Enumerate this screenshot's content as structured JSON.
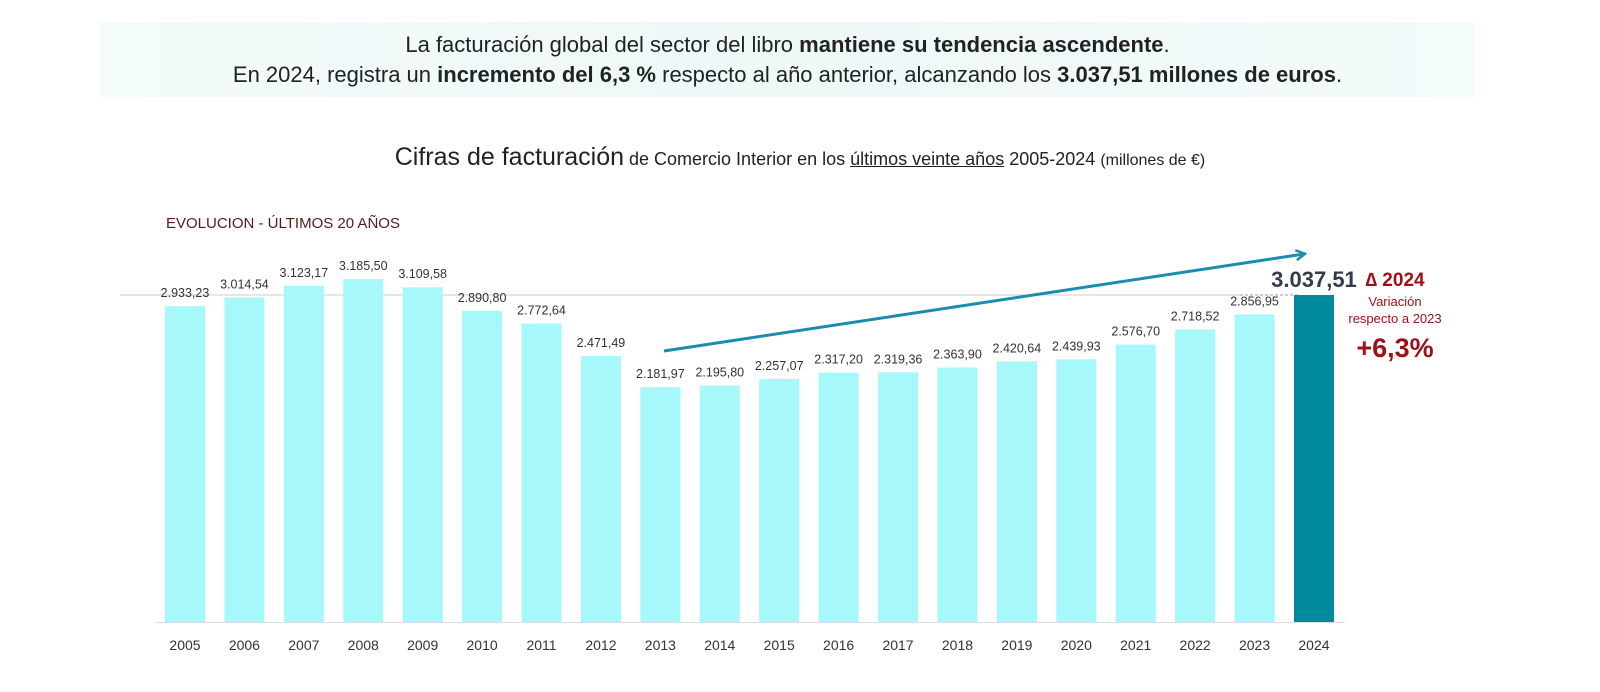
{
  "banner": {
    "line1_a": "La facturación global del sector del libro ",
    "line1_b": "mantiene su tendencia ascendente",
    "line1_c": ".",
    "line2_a": "En 2024",
    "line2_b": ", registra un ",
    "line2_c": "incremento del 6,3 %",
    "line2_d": " respecto al año anterior, alcanzando los ",
    "line2_e": "3.037,51 millones de euros",
    "line2_f": "."
  },
  "title": {
    "a": "Cifras de facturación",
    "b": " de Comercio Interior en los ",
    "c": "últimos veinte años",
    "d": " 2005-2024 ",
    "e": "(millones de €)"
  },
  "subtitle": "EVOLUCION - ÚLTIMOS 20 AÑOS",
  "annotation": {
    "delta": "∆ 2024",
    "label1": "Variación",
    "label2": "respecto a 2023",
    "value": "+6,3%"
  },
  "colors": {
    "bar": "#a6f8fb",
    "highlight": "#008a9c",
    "arrow": "#1b8bb0",
    "annotation": "#a01018"
  },
  "chart_data": {
    "type": "bar",
    "categories": [
      "2005",
      "2006",
      "2007",
      "2008",
      "2009",
      "2010",
      "2011",
      "2012",
      "2013",
      "2014",
      "2015",
      "2016",
      "2017",
      "2018",
      "2019",
      "2020",
      "2021",
      "2022",
      "2023",
      "2024"
    ],
    "values": [
      2933.23,
      3014.54,
      3123.17,
      3185.5,
      3109.58,
      2890.8,
      2772.64,
      2471.49,
      2181.97,
      2195.8,
      2257.07,
      2317.2,
      2319.36,
      2363.9,
      2420.64,
      2439.93,
      2576.7,
      2718.52,
      2856.95,
      3037.51
    ],
    "labels": [
      "2.933,23",
      "3.014,54",
      "3.123,17",
      "3.185,50",
      "3.109,58",
      "2.890,80",
      "2.772,64",
      "2.471,49",
      "2.181,97",
      "2.195,80",
      "2.257,07",
      "2.317,20",
      "2.319,36",
      "2.363,90",
      "2.420,64",
      "2.439,93",
      "2.576,70",
      "2.718,52",
      "2.856,95",
      "3.037,51"
    ],
    "highlight": "2024",
    "ylim": [
      0,
      3300
    ],
    "trend_arrow": {
      "from": "2013",
      "to": "2024"
    },
    "grid": false
  }
}
